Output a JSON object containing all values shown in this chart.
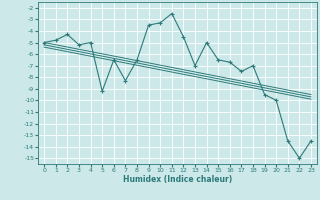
{
  "xlabel": "Humidex (Indice chaleur)",
  "background_color": "#cce8e8",
  "grid_color": "#ffffff",
  "line_color": "#2d7a7a",
  "xlim": [
    -0.5,
    23.5
  ],
  "ylim": [
    -15.5,
    -1.5
  ],
  "xticks": [
    0,
    1,
    2,
    3,
    4,
    5,
    6,
    7,
    8,
    9,
    10,
    11,
    12,
    13,
    14,
    15,
    16,
    17,
    18,
    19,
    20,
    21,
    22,
    23
  ],
  "yticks": [
    -15,
    -14,
    -13,
    -12,
    -11,
    -10,
    -9,
    -8,
    -7,
    -6,
    -5,
    -4,
    -3,
    -2
  ],
  "series": [
    [
      0,
      -5
    ],
    [
      1,
      -4.8
    ],
    [
      2,
      -4.3
    ],
    [
      3,
      -5.2
    ],
    [
      4,
      -5.0
    ],
    [
      5,
      -9.2
    ],
    [
      6,
      -6.5
    ],
    [
      7,
      -8.3
    ],
    [
      8,
      -6.5
    ],
    [
      9,
      -3.5
    ],
    [
      10,
      -3.3
    ],
    [
      11,
      -2.5
    ],
    [
      12,
      -4.5
    ],
    [
      13,
      -7.0
    ],
    [
      14,
      -5.0
    ],
    [
      15,
      -6.5
    ],
    [
      16,
      -6.7
    ],
    [
      17,
      -7.5
    ],
    [
      18,
      -7.0
    ],
    [
      19,
      -9.5
    ],
    [
      20,
      -10.0
    ],
    [
      21,
      -13.5
    ],
    [
      22,
      -15.0
    ],
    [
      23,
      -13.5
    ]
  ],
  "trend_lines": [
    [
      [
        0,
        -5.0
      ],
      [
        23,
        -9.5
      ]
    ],
    [
      [
        0,
        -5.2
      ],
      [
        23,
        -9.7
      ]
    ],
    [
      [
        0,
        -5.4
      ],
      [
        23,
        -9.9
      ]
    ]
  ]
}
